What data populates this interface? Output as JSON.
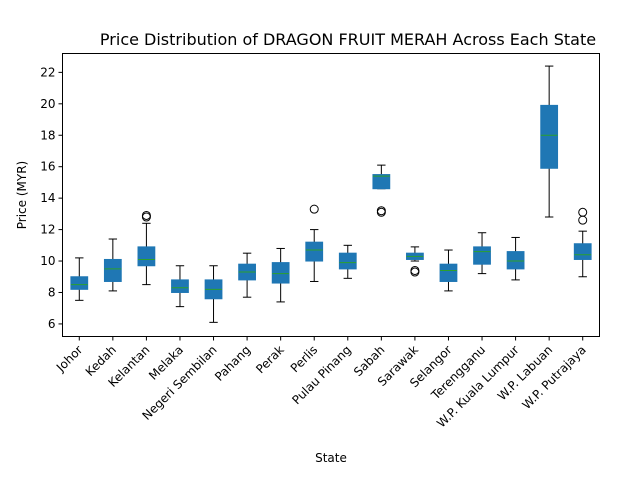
{
  "chart_data": {
    "type": "boxplot",
    "title": "Price Distribution of DRAGON FRUIT MERAH Across Each State",
    "xlabel": "State",
    "ylabel": "Price (MYR)",
    "ylim": [
      5.2,
      23.2
    ],
    "yticks": [
      6,
      8,
      10,
      12,
      14,
      16,
      18,
      20,
      22
    ],
    "grid": false,
    "box_color": "#1f77b4",
    "median_color": "#2ca02c",
    "categories": [
      "Johor",
      "Kedah",
      "Kelantan",
      "Melaka",
      "Negeri Sembilan",
      "Pahang",
      "Perak",
      "Perlis",
      "Pulau Pinang",
      "Sabah",
      "Sarawak",
      "Selangor",
      "Terengganu",
      "W.P. Kuala Lumpur",
      "W.P. Labuan",
      "W.P. Putrajaya"
    ],
    "boxes": [
      {
        "whislo": 7.5,
        "q1": 8.2,
        "med": 8.5,
        "q3": 9.0,
        "whishi": 10.2,
        "fliers": []
      },
      {
        "whislo": 8.1,
        "q1": 8.7,
        "med": 9.5,
        "q3": 10.1,
        "whishi": 11.4,
        "fliers": []
      },
      {
        "whislo": 8.5,
        "q1": 9.7,
        "med": 10.1,
        "q3": 10.9,
        "whishi": 12.4,
        "fliers": [
          12.8,
          12.9
        ]
      },
      {
        "whislo": 7.1,
        "q1": 8.0,
        "med": 8.3,
        "q3": 8.8,
        "whishi": 9.7,
        "fliers": []
      },
      {
        "whislo": 6.1,
        "q1": 7.6,
        "med": 8.2,
        "q3": 8.8,
        "whishi": 9.7,
        "fliers": []
      },
      {
        "whislo": 7.7,
        "q1": 8.8,
        "med": 9.3,
        "q3": 9.8,
        "whishi": 10.5,
        "fliers": []
      },
      {
        "whislo": 7.4,
        "q1": 8.6,
        "med": 9.2,
        "q3": 9.9,
        "whishi": 10.8,
        "fliers": []
      },
      {
        "whislo": 8.7,
        "q1": 10.0,
        "med": 10.7,
        "q3": 11.2,
        "whishi": 12.0,
        "fliers": [
          13.3
        ]
      },
      {
        "whislo": 8.9,
        "q1": 9.5,
        "med": 9.9,
        "q3": 10.5,
        "whishi": 11.0,
        "fliers": []
      },
      {
        "whislo": 14.6,
        "q1": 14.6,
        "med": 15.4,
        "q3": 15.5,
        "whishi": 16.1,
        "fliers": [
          13.2,
          13.1
        ]
      },
      {
        "whislo": 10.0,
        "q1": 10.1,
        "med": 10.3,
        "q3": 10.5,
        "whishi": 10.9,
        "fliers": [
          9.4,
          9.3
        ]
      },
      {
        "whislo": 8.1,
        "q1": 8.7,
        "med": 9.4,
        "q3": 9.8,
        "whishi": 10.7,
        "fliers": []
      },
      {
        "whislo": 9.2,
        "q1": 9.8,
        "med": 10.6,
        "q3": 10.9,
        "whishi": 11.8,
        "fliers": []
      },
      {
        "whislo": 8.8,
        "q1": 9.5,
        "med": 10.0,
        "q3": 10.6,
        "whishi": 11.5,
        "fliers": []
      },
      {
        "whislo": 12.8,
        "q1": 15.9,
        "med": 18.0,
        "q3": 19.9,
        "whishi": 22.4,
        "fliers": []
      },
      {
        "whislo": 9.0,
        "q1": 10.1,
        "med": 10.4,
        "q3": 11.1,
        "whishi": 11.9,
        "fliers": [
          12.6,
          13.1
        ]
      }
    ]
  }
}
